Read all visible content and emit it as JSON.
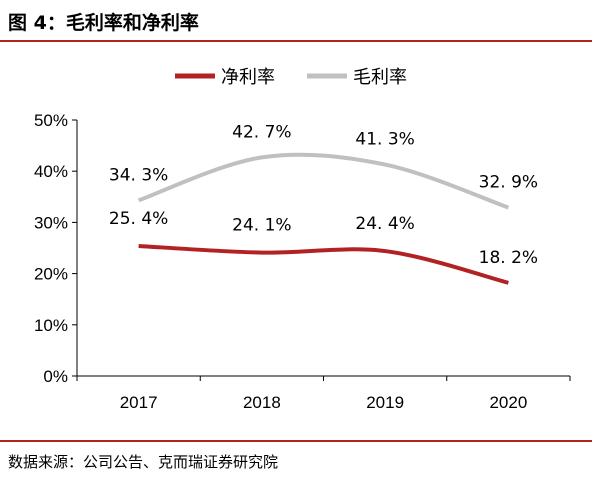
{
  "figure": {
    "title": "图 4：毛利率和净利率",
    "source": "数据来源：公司公告、克而瑞证券研究院"
  },
  "colors": {
    "accent": "#b22222",
    "net_margin": "#b22222",
    "gross_margin": "#c0c0c0"
  },
  "chart_data": {
    "type": "line",
    "x": [
      "2017",
      "2018",
      "2019",
      "2020"
    ],
    "series": [
      {
        "name": "净利率",
        "values": [
          25.4,
          24.1,
          24.4,
          18.2
        ],
        "labels": [
          "25. 4%",
          "24. 1%",
          "24. 4%",
          "18. 2%"
        ]
      },
      {
        "name": "毛利率",
        "values": [
          34.3,
          42.7,
          41.3,
          32.9
        ],
        "labels": [
          "34. 3%",
          "42. 7%",
          "41. 3%",
          "32. 9%"
        ]
      }
    ],
    "ylim": [
      0,
      50
    ],
    "yticks": [
      0,
      10,
      20,
      30,
      40,
      50
    ],
    "ytick_labels": [
      "0%",
      "10%",
      "20%",
      "30%",
      "40%",
      "50%"
    ],
    "smooth": true,
    "grid": false,
    "legend_position": "top"
  }
}
